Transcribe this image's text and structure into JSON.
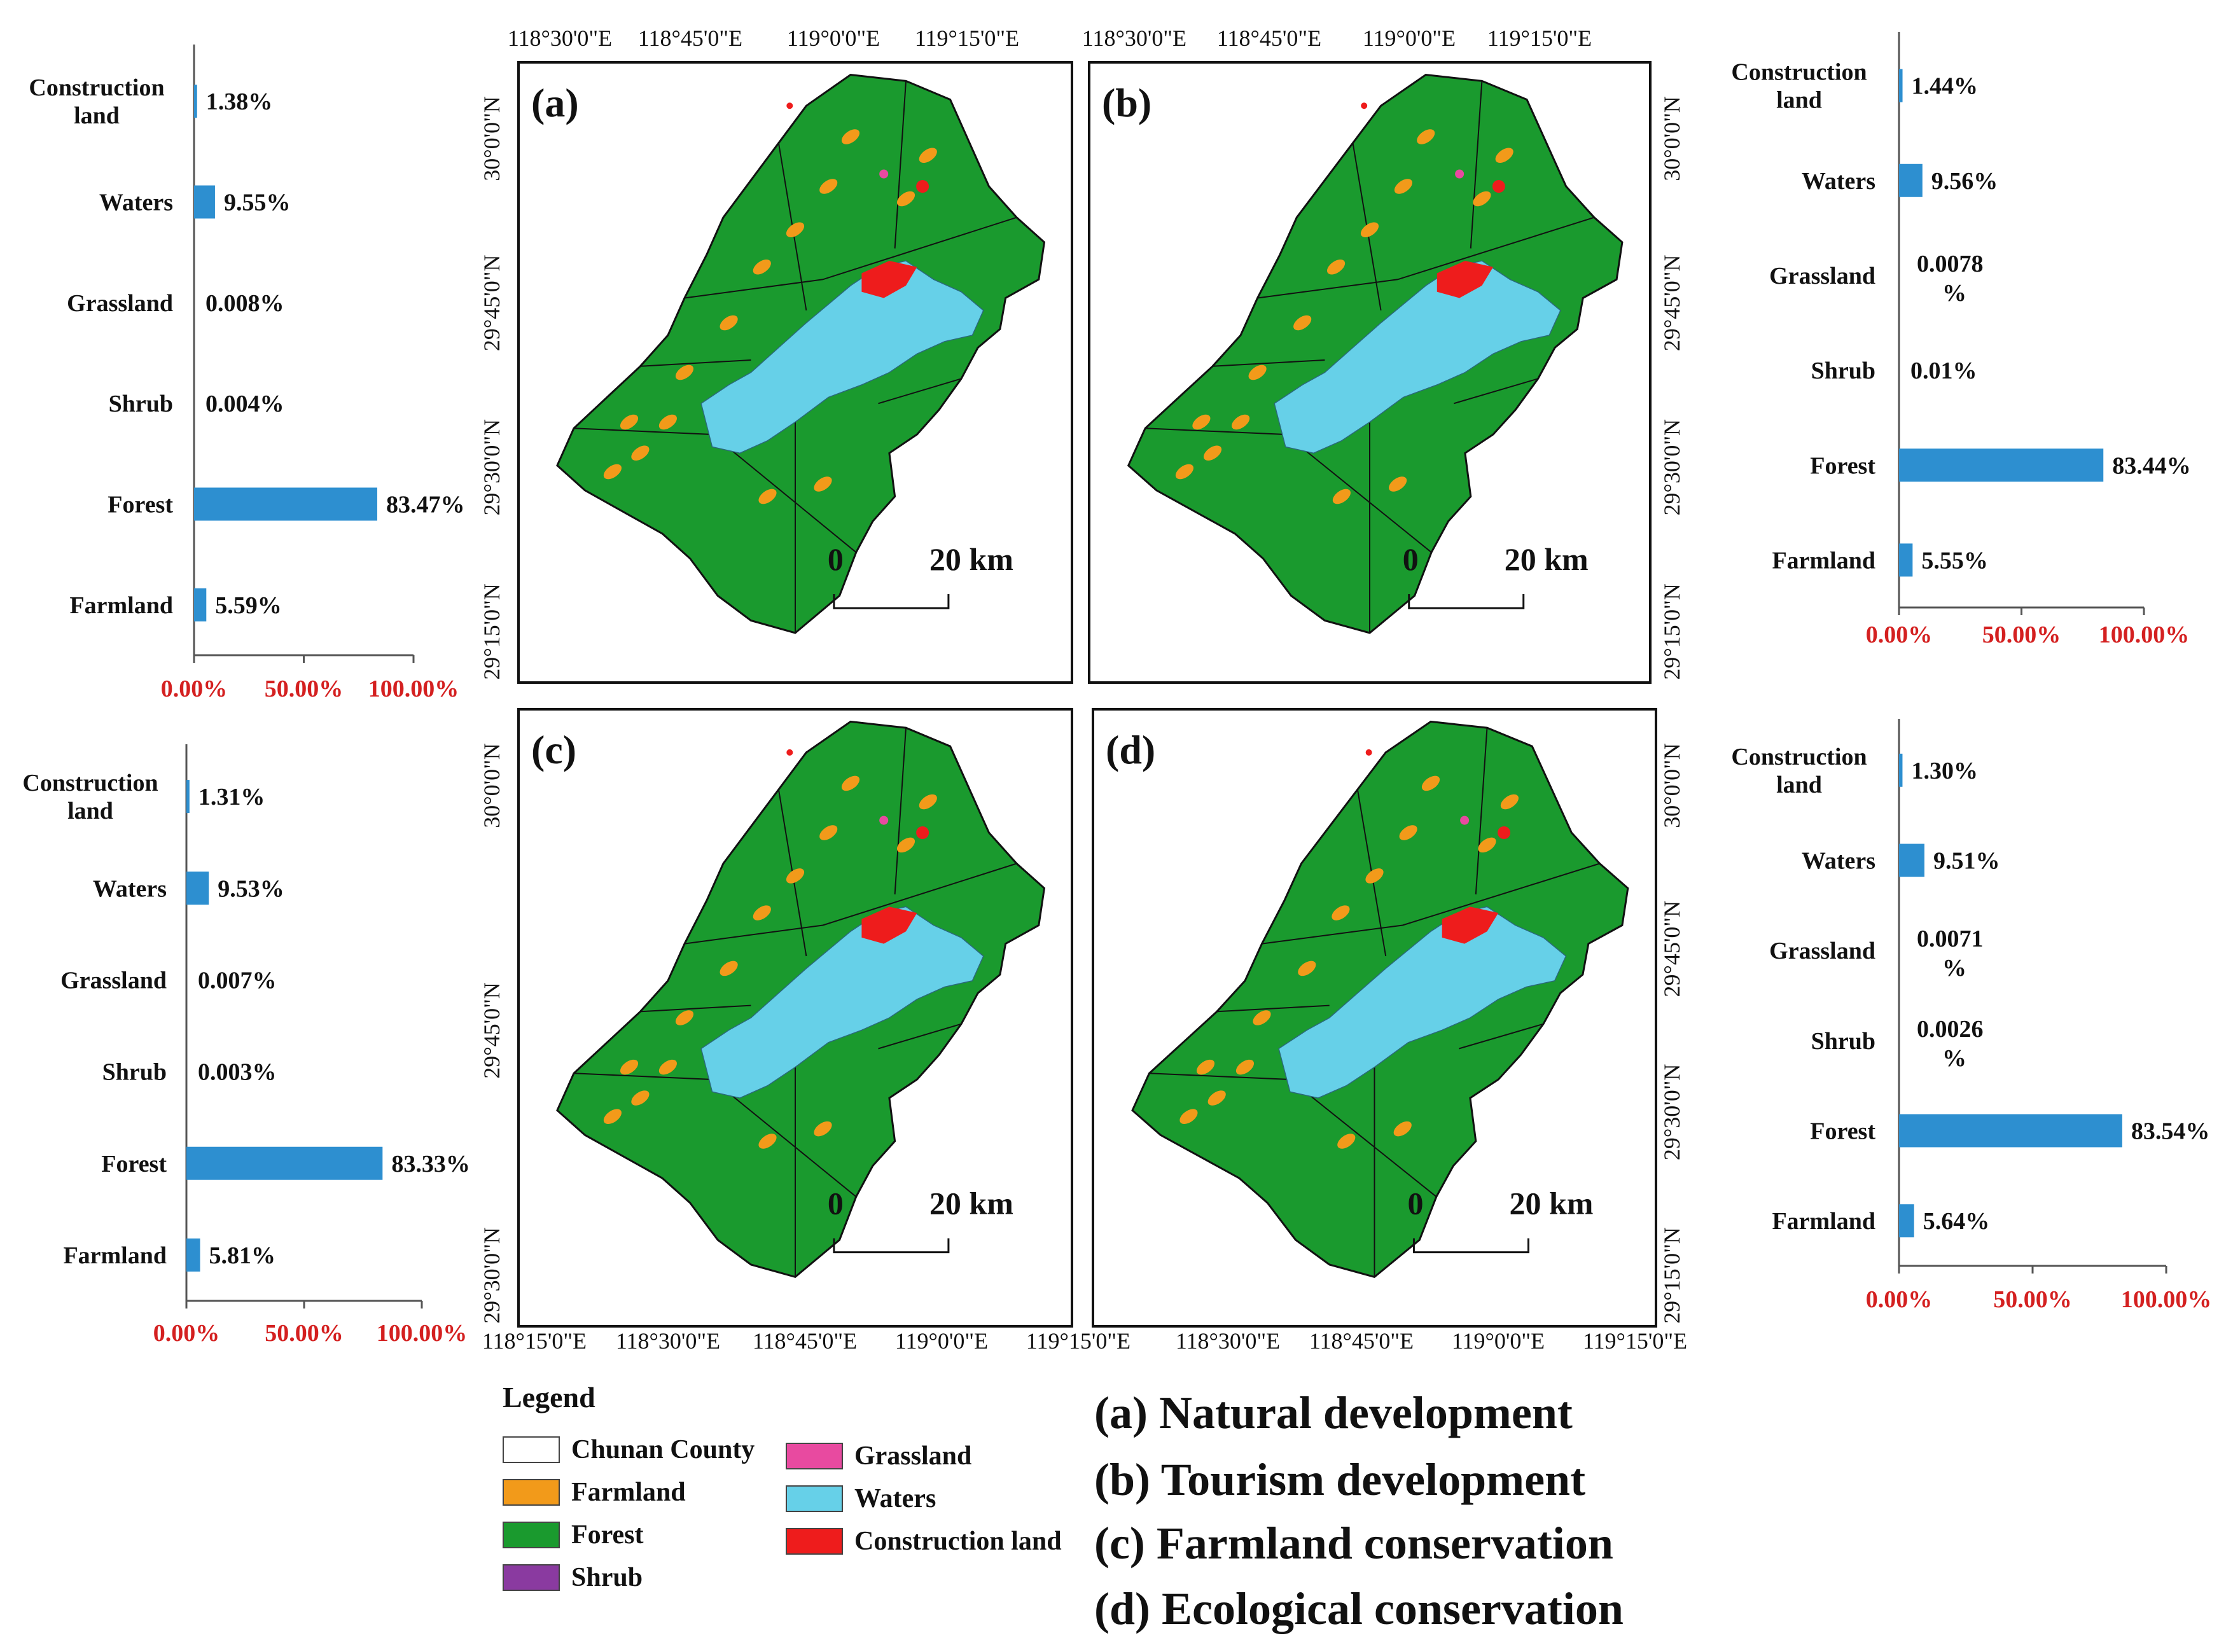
{
  "colors": {
    "forest": "#1a9a2e",
    "farmland": "#f29a1a",
    "waters": "#66d0e8",
    "construction": "#ee1c1c",
    "grassland": "#e84aa0",
    "shrub": "#8a3aa0",
    "county": "#ffffff",
    "bar": "#2d8fd0",
    "axis_tick_label": "#d42020"
  },
  "chart_data": [
    {
      "type": "bar",
      "orientation": "horizontal",
      "panel": "a",
      "categories": [
        "Construction land",
        "Waters",
        "Grassland",
        "Shrub",
        "Forest",
        "Farmland"
      ],
      "values": [
        1.38,
        9.55,
        0.008,
        0.004,
        83.47,
        5.59
      ],
      "value_labels": [
        "1.38%",
        "9.55%",
        "0.008%",
        "0.004%",
        "83.47%",
        "5.59%"
      ],
      "xlim": [
        0,
        100
      ],
      "xticks": [
        "0.00%",
        "50.00%",
        "100.00%"
      ]
    },
    {
      "type": "bar",
      "orientation": "horizontal",
      "panel": "b",
      "categories": [
        "Construction land",
        "Waters",
        "Grassland",
        "Shrub",
        "Forest",
        "Farmland"
      ],
      "values": [
        1.44,
        9.56,
        0.0078,
        0.01,
        83.44,
        5.55
      ],
      "value_labels": [
        "1.44%",
        "9.56%",
        "0.0078 %",
        "0.01%",
        "83.44%",
        "5.55%"
      ],
      "xlim": [
        0,
        100
      ],
      "xticks": [
        "0.00%",
        "50.00%",
        "100.00%"
      ]
    },
    {
      "type": "bar",
      "orientation": "horizontal",
      "panel": "c",
      "categories": [
        "Construction land",
        "Waters",
        "Grassland",
        "Shrub",
        "Forest",
        "Farmland"
      ],
      "values": [
        1.31,
        9.53,
        0.007,
        0.003,
        83.33,
        5.81
      ],
      "value_labels": [
        "1.31%",
        "9.53%",
        "0.007%",
        "0.003%",
        "83.33%",
        "5.81%"
      ],
      "xlim": [
        0,
        100
      ],
      "xticks": [
        "0.00%",
        "50.00%",
        "100.00%"
      ]
    },
    {
      "type": "bar",
      "orientation": "horizontal",
      "panel": "d",
      "categories": [
        "Construction land",
        "Waters",
        "Grassland",
        "Shrub",
        "Forest",
        "Farmland"
      ],
      "values": [
        1.3,
        9.51,
        0.0071,
        0.0026,
        83.54,
        5.64
      ],
      "value_labels": [
        "1.30%",
        "9.51%",
        "0.0071 %",
        "0.0026 %",
        "83.54%",
        "5.64%"
      ],
      "xlim": [
        0,
        100
      ],
      "xticks": [
        "0.00%",
        "50.00%",
        "100.00%"
      ]
    }
  ],
  "maps": [
    {
      "label": "(a)",
      "top_ticks": [
        "118°30'0\"E",
        "118°45'0\"E",
        "119°0'0\"E",
        "119°15'0\"E"
      ],
      "side_ticks": [
        "30°0'0\"N",
        "29°45'0\"N",
        "29°30'0\"N",
        "29°15'0\"N"
      ]
    },
    {
      "label": "(b)",
      "top_ticks": [
        "118°30'0\"E",
        "118°45'0\"E",
        "119°0'0\"E",
        "119°15'0\"E"
      ],
      "side_ticks": [
        "30°0'0\"N",
        "29°45'0\"N",
        "29°30'0\"N",
        "29°15'0\"N"
      ]
    },
    {
      "label": "(c)",
      "bottom_ticks": [
        "118°15'0\"E",
        "118°30'0\"E",
        "118°45'0\"E",
        "119°0'0\"E",
        "119°15'0\"E"
      ],
      "side_ticks": [
        "30°0'0\"N",
        "29°45'0\"N",
        "29°30'0\"N"
      ]
    },
    {
      "label": "(d)",
      "bottom_ticks": [
        "118°30'0\"E",
        "118°45'0\"E",
        "119°0'0\"E",
        "119°15'0\"E"
      ],
      "side_ticks": [
        "30°0'0\"N",
        "29°45'0\"N",
        "29°30'0\"N",
        "29°15'0\"N"
      ]
    }
  ],
  "scale_bar": {
    "zero": "0",
    "distance": "20 km"
  },
  "legend": {
    "title": "Legend",
    "items": [
      {
        "label": "Chunan County",
        "key": "county"
      },
      {
        "label": "Farmland",
        "key": "farmland"
      },
      {
        "label": "Forest",
        "key": "forest"
      },
      {
        "label": "Shrub",
        "key": "shrub"
      },
      {
        "label": "Grassland",
        "key": "grassland"
      },
      {
        "label": "Waters",
        "key": "waters"
      },
      {
        "label": "Construction land",
        "key": "construction"
      }
    ]
  },
  "scenarios": [
    "(a) Natural development",
    "(b) Tourism development",
    "(c) Farmland conservation",
    "(d) Ecological conservation"
  ]
}
